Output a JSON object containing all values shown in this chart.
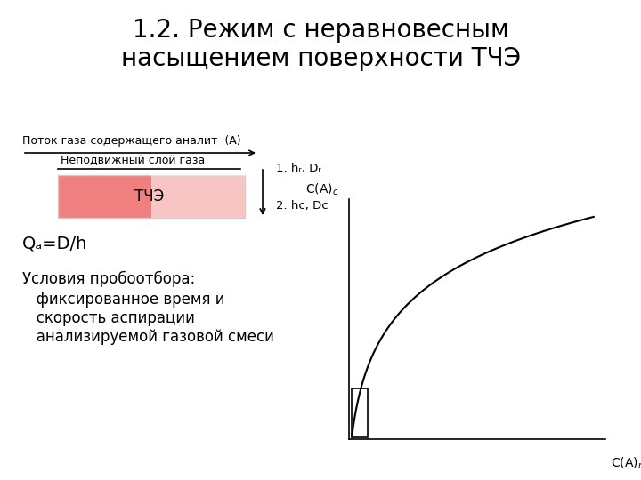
{
  "title": "1.2. Режим с неравновесным\nнасыщением поверхности ТЧЭ",
  "title_fontsize": 20,
  "bg_color": "#ffffff",
  "flow_label": "Поток газа содержащего аналит  (А)",
  "layer_label": "Неподвижный слой газа",
  "label1": "1. hᵣ, Dᵣ",
  "label2": "2. hᴄ, Dᴄ",
  "tche_label": "ТЧЭ",
  "tche_color": "#f08080",
  "formula": "Qₐ=D/h",
  "conditions_title": "Условия пробоотбора:",
  "conditions_body": "   фиксированное время и\n   скорость аспирации\n   анализируемой газовой смеси",
  "graph_ylabel": "C(A)c",
  "graph_xlabel": "C(A)r",
  "curve_color": "#000000",
  "rect_color": "#ffffff",
  "rect_edge_color": "#000000"
}
